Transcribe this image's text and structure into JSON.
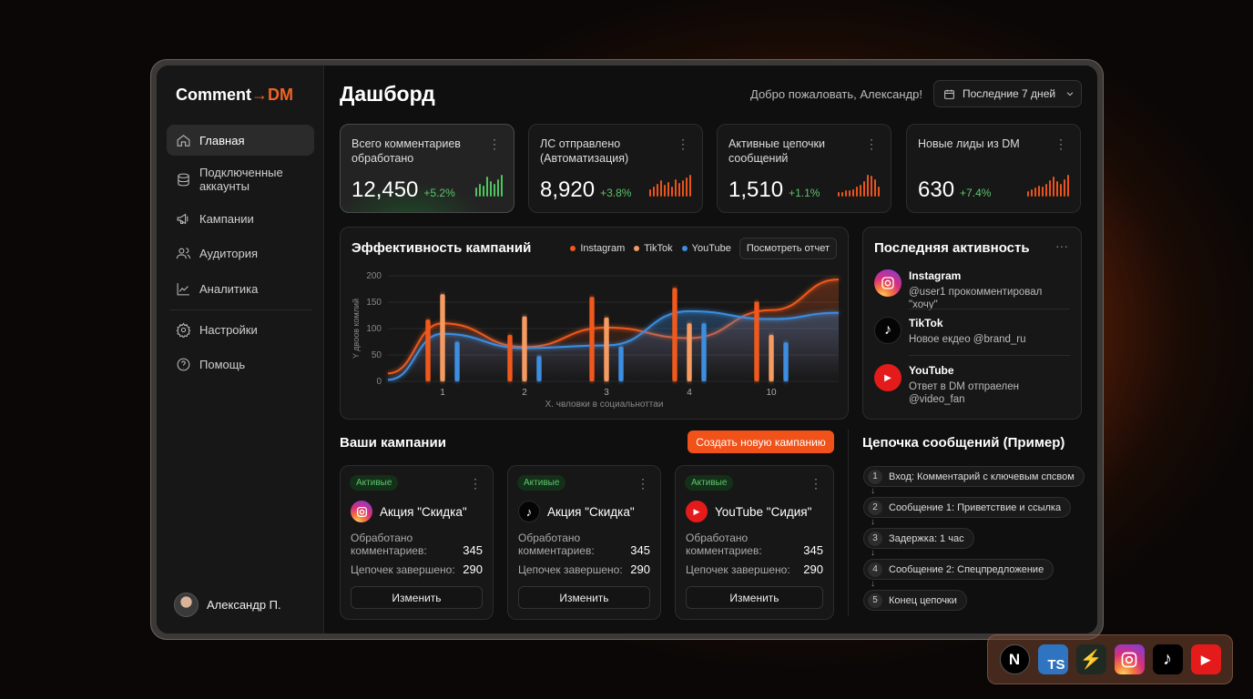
{
  "app": {
    "logo_main": "Comment",
    "logo_arrow": "→",
    "logo_accent": "DM",
    "accent_color": "#f06423"
  },
  "sidebar": {
    "items": [
      {
        "label": "Главная",
        "icon": "home-icon",
        "active": true
      },
      {
        "label": "Подключенные аккаунты",
        "icon": "database-icon"
      },
      {
        "label": "Кампании",
        "icon": "megaphone-icon"
      },
      {
        "label": "Аудитория",
        "icon": "users-icon"
      },
      {
        "label": "Аналитика",
        "icon": "chart-line-icon"
      },
      {
        "label": "Настройки",
        "icon": "gear-icon"
      },
      {
        "label": "Помощь",
        "icon": "help-icon"
      }
    ],
    "user": "Александр П."
  },
  "header": {
    "title": "Дашборд",
    "welcome": "Добро пожаловать, Александр!",
    "date_range": "Последние 7 дней"
  },
  "stats": [
    {
      "label": "Всего комментариев обработано",
      "value": "12,450",
      "change": "+5.2%",
      "spark": [
        8,
        12,
        10,
        18,
        14,
        12,
        16,
        20
      ],
      "color": "#4fc35e"
    },
    {
      "label": "ЛС отправлено (Автоматизация)",
      "value": "8,920",
      "change": "+3.8%",
      "spark": [
        6,
        9,
        11,
        14,
        10,
        13,
        9,
        15,
        12,
        14,
        17,
        19
      ],
      "color": "#e8541c"
    },
    {
      "label": "Активные цепочки сообщений",
      "value": "1,510",
      "change": "+1.1%",
      "spark": [
        4,
        4,
        5,
        5,
        6,
        8,
        10,
        13,
        18,
        17,
        14,
        8
      ],
      "color": "#e8541c"
    },
    {
      "label": "Новые лиды из DM",
      "value": "630",
      "change": "+7.4%",
      "spark": [
        5,
        7,
        8,
        10,
        9,
        12,
        15,
        18,
        14,
        12,
        16,
        20
      ],
      "color": "#e8541c"
    }
  ],
  "chart_card": {
    "title": "Эффективность кампаний",
    "report_button": "Посмотреть отчет"
  },
  "chart_data": {
    "type": "bar",
    "categories": [
      "1",
      "2",
      "3",
      "4",
      "10"
    ],
    "series": [
      {
        "name": "Instagram",
        "color": "#f0581c",
        "values": [
          117,
          88,
          160,
          177,
          151
        ],
        "trend": [
          15,
          110,
          65,
          102,
          82,
          135,
          193
        ]
      },
      {
        "name": "TikTok",
        "color": "#f59a60",
        "values": [
          165,
          123,
          121,
          110,
          88
        ]
      },
      {
        "name": "YouTube",
        "color": "#3d8de0",
        "values": [
          75,
          48,
          66,
          110,
          74
        ],
        "trend": [
          3,
          90,
          63,
          68,
          133,
          118,
          130
        ]
      }
    ],
    "ylabel": "Y двоов комлий",
    "xlabel": "X. чвловки в социальноттаи",
    "ylim": [
      0,
      200
    ],
    "yticks": [
      "0",
      "50",
      "100",
      "150",
      "200"
    ],
    "grid": true,
    "legend": "top-right"
  },
  "activity": {
    "title": "Последняя активность",
    "items": [
      {
        "name": "Instagram",
        "text": "@user1 прокомментировал \"хочу\"",
        "icon": "instagram-icon"
      },
      {
        "name": "TikTok",
        "text": "Новое екдео @brand_ru",
        "icon": "tiktok-icon"
      },
      {
        "name": "YouTube",
        "text": "Ответ в DM отпраелен @video_fan",
        "icon": "youtube-icon"
      }
    ]
  },
  "campaigns": {
    "title": "Ваши кампании",
    "create_button": "Создать новую кампанию",
    "items": [
      {
        "status": "Активые",
        "name": "Акция \"Скидка\"",
        "icon": "instagram-icon",
        "processed_label": "Обработано комментариев:",
        "processed": "345",
        "completed_label": "Цепочек завершено:",
        "completed": "290",
        "edit": "Изменить"
      },
      {
        "status": "Активые",
        "name": "Акция \"Скидка\"",
        "icon": "tiktok-icon",
        "processed_label": "Обработано комментариев:",
        "processed": "345",
        "completed_label": "Цепочек завершено:",
        "completed": "290",
        "edit": "Изменить"
      },
      {
        "status": "Активые",
        "name": "YouTube \"Сидия\"",
        "icon": "youtube-icon",
        "processed_label": "Обработано комментариев:",
        "processed": "345",
        "completed_label": "Цепочек завершено:",
        "completed": "290",
        "edit": "Изменить"
      }
    ]
  },
  "chain": {
    "title": "Цепочка сообщений (Пример)",
    "steps": [
      {
        "n": "1",
        "text": "Вход: Комментарий с ключевым спсвом"
      },
      {
        "n": "2",
        "text": "Сообщение 1: Приветствие и ссылка"
      },
      {
        "n": "3",
        "text": "Задержка: 1 час"
      },
      {
        "n": "4",
        "text": "Сообщение 2: Спецпредложение"
      },
      {
        "n": "5",
        "text": "Конец цепочки"
      }
    ]
  },
  "dock": {
    "ts_label": "TS",
    "next_label": "N"
  }
}
